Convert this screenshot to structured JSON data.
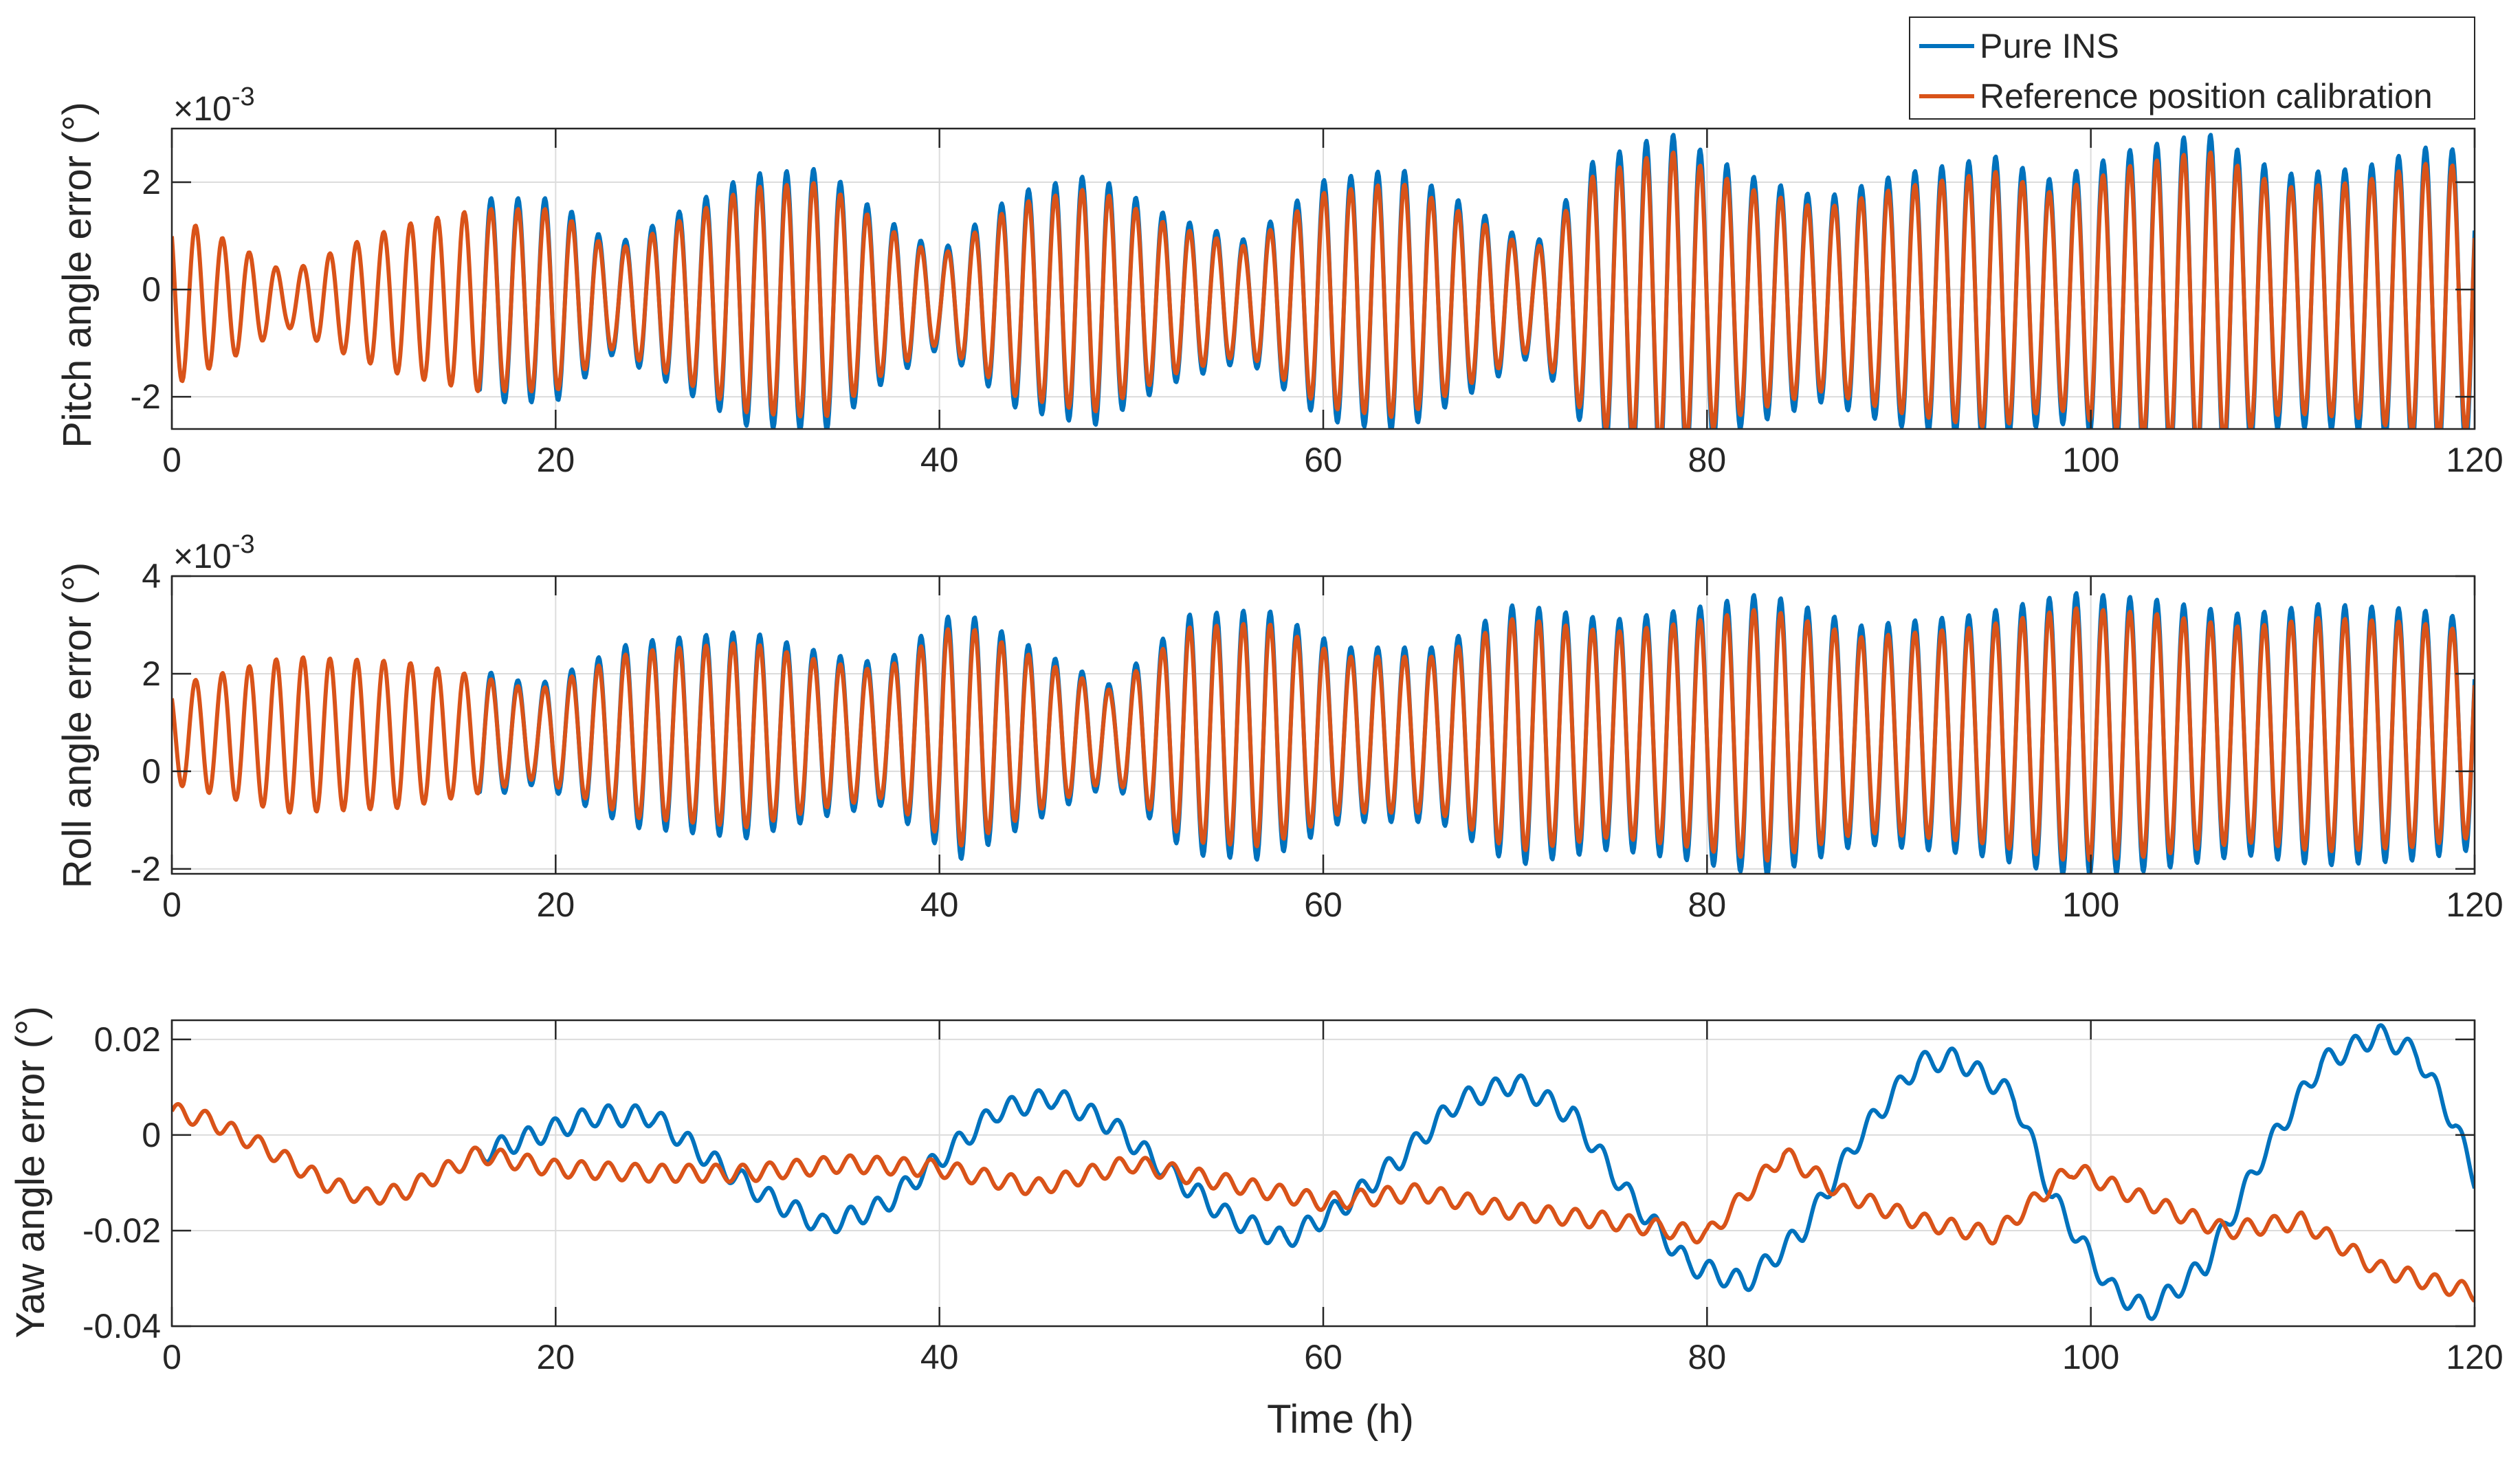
{
  "figure": {
    "colors": {
      "pure_ins": "#0072BD",
      "reference": "#D95319",
      "axis": "#262626",
      "grid": "#DCDCDC"
    },
    "legend": {
      "entries": [
        {
          "label": "Pure INS",
          "color": "#0072BD"
        },
        {
          "label": "Reference position calibration",
          "color": "#D95319"
        }
      ]
    }
  },
  "chart_data": [
    {
      "type": "line",
      "title": "",
      "xlabel": "",
      "ylabel": "Pitch angle error (°)",
      "exponent_label": "×10^-3",
      "exponent_base": "×10",
      "exponent_power": "-3",
      "xlim": [
        0,
        120
      ],
      "ylim": [
        -2.6,
        3.0
      ],
      "xticks": [
        0,
        20,
        40,
        60,
        80,
        100,
        120
      ],
      "xtick_labels": [
        "0",
        "20",
        "40",
        "60",
        "80",
        "100",
        "120"
      ],
      "yticks": [
        -2,
        0,
        2
      ],
      "ytick_labels": [
        "-2",
        "0",
        "2"
      ],
      "grid": true,
      "series": [
        {
          "name": "Pure INS",
          "color": "#0072BD",
          "model": "osc",
          "params": {
            "fast_period": 1.4,
            "offset": -0.2,
            "split_at": 16,
            "blue_extra": 0.12,
            "env_points": [
              [
                0,
                1.6
              ],
              [
                3,
                1.1
              ],
              [
                6,
                0.5
              ],
              [
                9,
                1.0
              ],
              [
                12,
                1.4
              ],
              [
                16,
                1.7
              ],
              [
                20,
                1.7
              ],
              [
                23,
                0.9
              ],
              [
                26,
                1.4
              ],
              [
                30,
                2.1
              ],
              [
                34,
                2.2
              ],
              [
                37,
                1.4
              ],
              [
                40,
                0.8
              ],
              [
                44,
                1.8
              ],
              [
                48,
                2.1
              ],
              [
                52,
                1.4
              ],
              [
                56,
                1.0
              ],
              [
                60,
                2.0
              ],
              [
                64,
                2.2
              ],
              [
                68,
                1.5
              ],
              [
                71,
                0.9
              ],
              [
                74,
                2.3
              ],
              [
                78,
                2.8
              ],
              [
                82,
                2.1
              ],
              [
                86,
                1.7
              ],
              [
                90,
                2.1
              ],
              [
                95,
                2.4
              ],
              [
                98,
                2.0
              ],
              [
                102,
                2.5
              ],
              [
                106,
                2.8
              ],
              [
                110,
                2.1
              ],
              [
                114,
                2.2
              ],
              [
                118,
                2.6
              ],
              [
                120,
                2.4
              ]
            ]
          }
        },
        {
          "name": "Reference position calibration",
          "color": "#D95319",
          "model": "osc",
          "params": {
            "fast_period": 1.4,
            "offset": -0.2,
            "split_at": 16,
            "blue_extra": 0.0,
            "env_points": [
              [
                0,
                1.6
              ],
              [
                3,
                1.1
              ],
              [
                6,
                0.5
              ],
              [
                9,
                1.0
              ],
              [
                12,
                1.4
              ],
              [
                16,
                1.7
              ],
              [
                20,
                1.7
              ],
              [
                23,
                0.9
              ],
              [
                26,
                1.4
              ],
              [
                30,
                2.1
              ],
              [
                34,
                2.2
              ],
              [
                37,
                1.4
              ],
              [
                40,
                0.8
              ],
              [
                44,
                1.8
              ],
              [
                48,
                2.1
              ],
              [
                52,
                1.4
              ],
              [
                56,
                1.0
              ],
              [
                60,
                2.0
              ],
              [
                64,
                2.2
              ],
              [
                68,
                1.5
              ],
              [
                71,
                0.9
              ],
              [
                74,
                2.3
              ],
              [
                78,
                2.8
              ],
              [
                82,
                2.1
              ],
              [
                86,
                1.7
              ],
              [
                90,
                2.1
              ],
              [
                95,
                2.4
              ],
              [
                98,
                2.0
              ],
              [
                102,
                2.5
              ],
              [
                106,
                2.8
              ],
              [
                110,
                2.1
              ],
              [
                114,
                2.2
              ],
              [
                118,
                2.6
              ],
              [
                120,
                2.4
              ]
            ]
          }
        }
      ]
    },
    {
      "type": "line",
      "title": "",
      "xlabel": "",
      "ylabel": "Roll angle error (°)",
      "exponent_label": "×10^-3",
      "exponent_base": "×10",
      "exponent_power": "-3",
      "xlim": [
        0,
        120
      ],
      "ylim": [
        -2.1,
        4.0
      ],
      "xticks": [
        0,
        20,
        40,
        60,
        80,
        100,
        120
      ],
      "xtick_labels": [
        "0",
        "20",
        "40",
        "60",
        "80",
        "100",
        "120"
      ],
      "yticks": [
        -2,
        0,
        2,
        4
      ],
      "ytick_labels": [
        "-2",
        "0",
        "2",
        "4"
      ],
      "grid": true,
      "series": [
        {
          "name": "Pure INS",
          "color": "#0072BD",
          "model": "osc",
          "params": {
            "fast_period": 1.4,
            "offset": 0.75,
            "split_at": 16,
            "blue_extra": 0.12,
            "env_points": [
              [
                0,
                1.0
              ],
              [
                6,
                1.6
              ],
              [
                12,
                1.5
              ],
              [
                16,
                1.2
              ],
              [
                19,
                0.9
              ],
              [
                24,
                1.7
              ],
              [
                30,
                1.9
              ],
              [
                34,
                1.5
              ],
              [
                37,
                1.3
              ],
              [
                41,
                2.3
              ],
              [
                46,
                1.4
              ],
              [
                49,
                0.9
              ],
              [
                53,
                2.2
              ],
              [
                57,
                2.3
              ],
              [
                61,
                1.6
              ],
              [
                66,
                1.6
              ],
              [
                70,
                2.4
              ],
              [
                75,
                2.1
              ],
              [
                79,
                2.3
              ],
              [
                83,
                2.6
              ],
              [
                88,
                2.0
              ],
              [
                94,
                2.2
              ],
              [
                99,
                2.6
              ],
              [
                103,
                2.5
              ],
              [
                108,
                2.2
              ],
              [
                112,
                2.4
              ],
              [
                117,
                2.3
              ],
              [
                120,
                2.1
              ]
            ]
          }
        },
        {
          "name": "Reference position calibration",
          "color": "#D95319",
          "model": "osc",
          "params": {
            "fast_period": 1.4,
            "offset": 0.75,
            "split_at": 16,
            "blue_extra": 0.0,
            "env_points": [
              [
                0,
                1.0
              ],
              [
                6,
                1.6
              ],
              [
                12,
                1.5
              ],
              [
                16,
                1.2
              ],
              [
                19,
                0.9
              ],
              [
                24,
                1.7
              ],
              [
                30,
                1.9
              ],
              [
                34,
                1.5
              ],
              [
                37,
                1.3
              ],
              [
                41,
                2.3
              ],
              [
                46,
                1.4
              ],
              [
                49,
                0.9
              ],
              [
                53,
                2.2
              ],
              [
                57,
                2.3
              ],
              [
                61,
                1.6
              ],
              [
                66,
                1.6
              ],
              [
                70,
                2.4
              ],
              [
                75,
                2.1
              ],
              [
                79,
                2.3
              ],
              [
                83,
                2.6
              ],
              [
                88,
                2.0
              ],
              [
                94,
                2.2
              ],
              [
                99,
                2.6
              ],
              [
                103,
                2.5
              ],
              [
                108,
                2.2
              ],
              [
                112,
                2.4
              ],
              [
                117,
                2.3
              ],
              [
                120,
                2.1
              ]
            ]
          }
        }
      ]
    },
    {
      "type": "line",
      "title": "",
      "xlabel": "Time (h)",
      "ylabel": "Yaw angle error (°)",
      "xlim": [
        0,
        120
      ],
      "ylim": [
        -0.04,
        0.024
      ],
      "xticks": [
        0,
        20,
        40,
        60,
        80,
        100,
        120
      ],
      "xtick_labels": [
        "0",
        "20",
        "40",
        "60",
        "80",
        "100",
        "120"
      ],
      "yticks": [
        -0.04,
        -0.02,
        0,
        0.02
      ],
      "ytick_labels": [
        "-0.04",
        "-0.02",
        "0",
        "0.02"
      ],
      "grid": true,
      "series": [
        {
          "name": "Pure INS",
          "color": "#0072BD",
          "model": "knots",
          "params": {
            "split_at": 16,
            "ripple_period": 1.4,
            "ripple_amp": 0.0022,
            "knots": [
              [
                0,
                0.005
              ],
              [
                2,
                0.003
              ],
              [
                5,
                -0.003
              ],
              [
                8,
                -0.01
              ],
              [
                10,
                -0.013
              ],
              [
                12,
                -0.012
              ],
              [
                16,
                -0.004
              ],
              [
                19,
                0.0
              ],
              [
                22,
                0.004
              ],
              [
                25,
                0.004
              ],
              [
                28,
                -0.005
              ],
              [
                31,
                -0.013
              ],
              [
                34,
                -0.019
              ],
              [
                37,
                -0.015
              ],
              [
                40,
                -0.005
              ],
              [
                43,
                0.005
              ],
              [
                46,
                0.008
              ],
              [
                49,
                0.002
              ],
              [
                52,
                -0.008
              ],
              [
                55,
                -0.017
              ],
              [
                58,
                -0.022
              ],
              [
                61,
                -0.015
              ],
              [
                64,
                -0.005
              ],
              [
                67,
                0.007
              ],
              [
                70,
                0.011
              ],
              [
                73,
                0.004
              ],
              [
                76,
                -0.013
              ],
              [
                79,
                -0.027
              ],
              [
                82,
                -0.031
              ],
              [
                85,
                -0.02
              ],
              [
                88,
                0.0
              ],
              [
                91,
                0.015
              ],
              [
                93,
                0.016
              ],
              [
                96,
                0.008
              ],
              [
                98,
                -0.013
              ],
              [
                101,
                -0.032
              ],
              [
                103,
                -0.037
              ],
              [
                106,
                -0.027
              ],
              [
                109,
                -0.004
              ],
              [
                112,
                0.015
              ],
              [
                115,
                0.021
              ],
              [
                117,
                0.017
              ],
              [
                119,
                0.002
              ],
              [
                120,
                -0.009
              ]
            ]
          }
        },
        {
          "name": "Reference position calibration",
          "color": "#D95319",
          "model": "knots",
          "params": {
            "split_at": 16,
            "ripple_period": 1.4,
            "ripple_amp": 0.0018,
            "knots": [
              [
                0,
                0.005
              ],
              [
                2,
                0.003
              ],
              [
                5,
                -0.003
              ],
              [
                8,
                -0.01
              ],
              [
                10,
                -0.013
              ],
              [
                12,
                -0.012
              ],
              [
                16,
                -0.004
              ],
              [
                20,
                -0.007
              ],
              [
                25,
                -0.008
              ],
              [
                30,
                -0.008
              ],
              [
                35,
                -0.006
              ],
              [
                40,
                -0.007
              ],
              [
                45,
                -0.011
              ],
              [
                50,
                -0.006
              ],
              [
                55,
                -0.01
              ],
              [
                60,
                -0.014
              ],
              [
                65,
                -0.012
              ],
              [
                70,
                -0.016
              ],
              [
                75,
                -0.018
              ],
              [
                80,
                -0.021
              ],
              [
                84,
                -0.004
              ],
              [
                87,
                -0.012
              ],
              [
                91,
                -0.018
              ],
              [
                95,
                -0.021
              ],
              [
                99,
                -0.007
              ],
              [
                103,
                -0.014
              ],
              [
                107,
                -0.02
              ],
              [
                111,
                -0.018
              ],
              [
                115,
                -0.028
              ],
              [
                120,
                -0.033
              ]
            ]
          }
        }
      ]
    }
  ]
}
